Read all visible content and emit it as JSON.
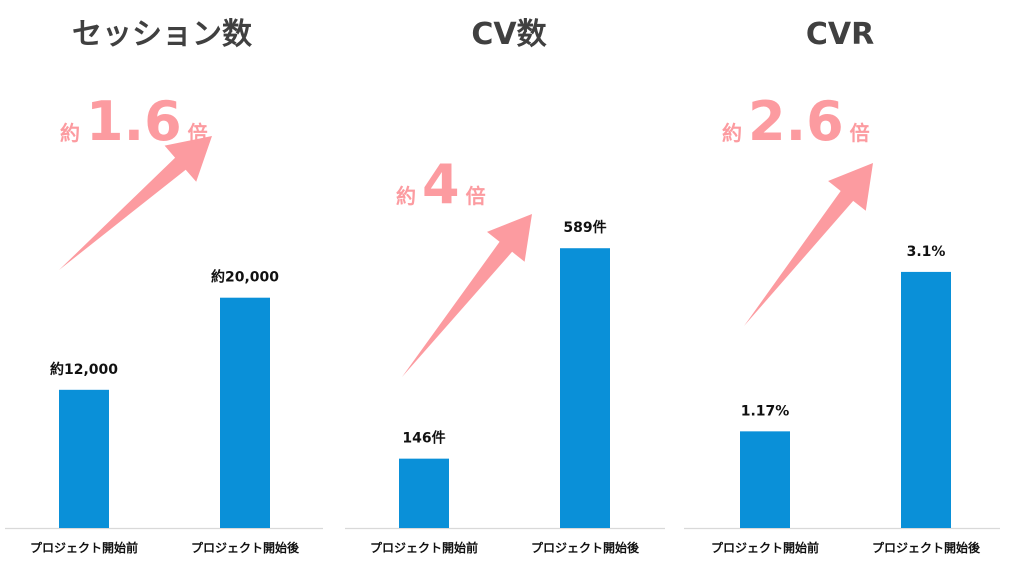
{
  "colors": {
    "bar": "#0a90d8",
    "arrow": "#fc9ba0",
    "axis": "#d9d9d9",
    "title": "#404040"
  },
  "chart_data": [
    {
      "type": "bar",
      "title": "セッション数",
      "categories": [
        "プロジェクト開始前",
        "プロジェクト開始後"
      ],
      "values": [
        12000,
        20000
      ],
      "value_labels": [
        "約12,000",
        "約20,000"
      ],
      "ylim": [
        0,
        33000
      ],
      "grid": false,
      "annotation": {
        "prefix": "約",
        "value": "1.6",
        "suffix": "倍"
      }
    },
    {
      "type": "bar",
      "title": "CV数",
      "categories": [
        "プロジェクト開始前",
        "プロジェクト開始後"
      ],
      "values": [
        146,
        589
      ],
      "value_labels": [
        "146件",
        "589件"
      ],
      "ylim": [
        0,
        800
      ],
      "grid": false,
      "annotation": {
        "prefix": "約",
        "value": "4",
        "suffix": "倍"
      }
    },
    {
      "type": "bar",
      "title": "CVR",
      "categories": [
        "プロジェクト開始前",
        "プロジェクト開始後"
      ],
      "values": [
        1.17,
        3.1
      ],
      "value_labels": [
        "1.17%",
        "3.1%"
      ],
      "ylim": [
        0,
        4.6
      ],
      "grid": false,
      "annotation": {
        "prefix": "約",
        "value": "2.6",
        "suffix": "倍"
      }
    }
  ]
}
